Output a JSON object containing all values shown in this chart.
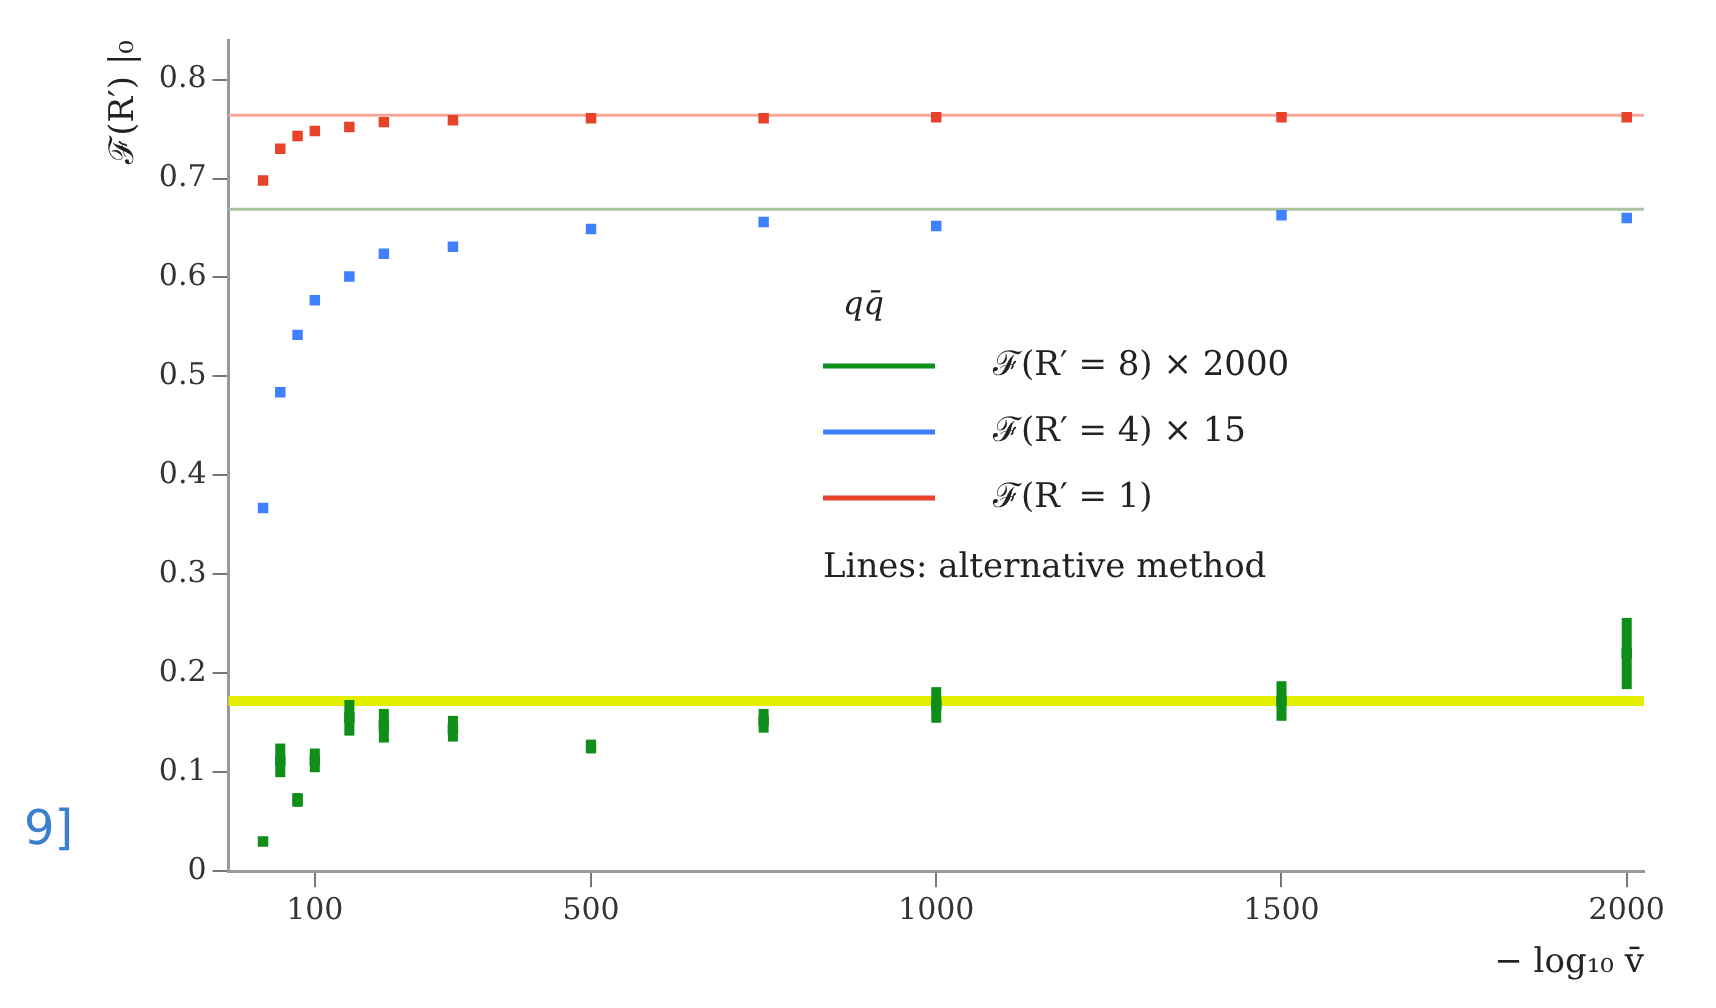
{
  "chart_data": {
    "type": "scatter",
    "ylabel": "ℱ(R′) |₀",
    "xlabel": "− log₁₀ v̄",
    "legend_title": "qq̄",
    "x": [
      25,
      50,
      75,
      100,
      150,
      200,
      300,
      500,
      750,
      1000,
      1500,
      2000
    ],
    "series": [
      {
        "name": "ℱ(R′ = 8) × 2000",
        "color": "#0f8f1a",
        "values": [
          0.03,
          0.112,
          0.072,
          0.112,
          0.155,
          0.147,
          0.144,
          0.126,
          0.152,
          0.168,
          0.172,
          0.22
        ],
        "errors": [
          0.003,
          0.017,
          0.007,
          0.012,
          0.018,
          0.017,
          0.013,
          0.007,
          0.012,
          0.018,
          0.02,
          0.036
        ]
      },
      {
        "name": "ℱ(R′ = 4) × 15",
        "color": "#3f80ff",
        "values": [
          0.367,
          0.484,
          0.542,
          0.577,
          0.601,
          0.624,
          0.631,
          0.649,
          0.656,
          0.652,
          0.663,
          0.66
        ]
      },
      {
        "name": "ℱ(R′ = 1)",
        "color": "#e8432a",
        "values": [
          0.698,
          0.73,
          0.743,
          0.748,
          0.752,
          0.757,
          0.759,
          0.761,
          0.761,
          0.762,
          0.762,
          0.762
        ]
      }
    ],
    "ref_lines": [
      {
        "axis": "y",
        "value": 0.172,
        "color": "#e4ef00",
        "line_style": "solid"
      },
      {
        "axis": "y",
        "value": 0.669,
        "color": "#a9c4a0",
        "line_style": "solid"
      },
      {
        "axis": "y",
        "value": 0.764,
        "color": "#f6a898",
        "line_style": "solid"
      }
    ],
    "xlim": [
      -25,
      2025
    ],
    "xticks": [
      100,
      500,
      1000,
      1500,
      2000
    ],
    "ylim": [
      0,
      0.84
    ],
    "yticks": [
      0,
      0.1,
      0.2,
      0.3,
      0.4,
      0.5,
      0.6,
      0.7,
      0.8
    ],
    "grid": false,
    "legend": "center right",
    "marker": "square",
    "annotations": [
      "Lines: alternative method",
      "9]"
    ]
  }
}
